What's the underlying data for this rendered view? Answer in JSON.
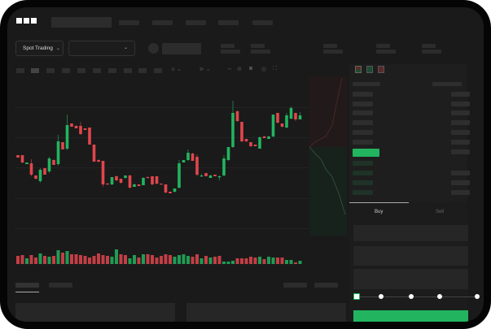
{
  "header": {
    "logo": "OKX"
  },
  "toolbar": {
    "market_type": "Spot Trading",
    "pair_select_value": ""
  },
  "trade_panel": {
    "tabs": [
      {
        "label": "Buy",
        "active": true
      },
      {
        "label": "Sell",
        "active": false
      }
    ],
    "leverage_steps": 5,
    "leverage_selected": 0
  },
  "colors": {
    "up": "#22b45f",
    "down": "#e0464d",
    "background": "#1a1a1a",
    "accent": "#22b45f"
  },
  "chart": {
    "type": "candlestick",
    "candles": [
      [
        118,
        115,
        118,
        115
      ],
      [
        118,
        109,
        118,
        108
      ],
      [
        107,
        109,
        109,
        107
      ],
      [
        108,
        94,
        113,
        92
      ],
      [
        93,
        89,
        93,
        88
      ],
      [
        86,
        100,
        102,
        84
      ],
      [
        102,
        94,
        102,
        94
      ],
      [
        98,
        114,
        116,
        96
      ],
      [
        112,
        106,
        113,
        106
      ],
      [
        107,
        135,
        143,
        105
      ],
      [
        134,
        125,
        134,
        125
      ],
      [
        126,
        155,
        168,
        124
      ],
      [
        157,
        153,
        157,
        153
      ],
      [
        154,
        151,
        155,
        151
      ],
      [
        154,
        144,
        159,
        143
      ],
      [
        151,
        149,
        151,
        149
      ],
      [
        152,
        131,
        152,
        131
      ],
      [
        131,
        110,
        131,
        110
      ],
      [
        112,
        110,
        113,
        109
      ],
      [
        111,
        82,
        111,
        79
      ],
      [
        83,
        82,
        84,
        82
      ],
      [
        82,
        91,
        91,
        81
      ],
      [
        92,
        87,
        93,
        86
      ],
      [
        89,
        84,
        89,
        83
      ],
      [
        90,
        93,
        93,
        89
      ],
      [
        93,
        78,
        94,
        77
      ],
      [
        79,
        82,
        83,
        79
      ],
      [
        82,
        80,
        82,
        80
      ],
      [
        81,
        90,
        91,
        81
      ],
      [
        91,
        90,
        92,
        90
      ],
      [
        92,
        82,
        92,
        81
      ],
      [
        92,
        83,
        92,
        82
      ],
      [
        83,
        82,
        83,
        82
      ],
      [
        82,
        72,
        82,
        71
      ],
      [
        73,
        71,
        73,
        71
      ],
      [
        73,
        77,
        77,
        72
      ],
      [
        78,
        108,
        112,
        77
      ],
      [
        109,
        112,
        112,
        109
      ],
      [
        112,
        121,
        125,
        111
      ],
      [
        120,
        111,
        121,
        111
      ],
      [
        116,
        94,
        119,
        92
      ],
      [
        92,
        93,
        95,
        91
      ],
      [
        96,
        92,
        96,
        92
      ],
      [
        90,
        93,
        94,
        90
      ],
      [
        94,
        92,
        94,
        92
      ],
      [
        92,
        92,
        93,
        87
      ],
      [
        93,
        114,
        118,
        92
      ],
      [
        112,
        128,
        128,
        111
      ],
      [
        128,
        170,
        185,
        127
      ],
      [
        172,
        160,
        173,
        159
      ],
      [
        159,
        135,
        159,
        134
      ],
      [
        138,
        135,
        138,
        134
      ],
      [
        134,
        129,
        134,
        128
      ],
      [
        131,
        129,
        131,
        129
      ],
      [
        126,
        140,
        141,
        126
      ],
      [
        141,
        139,
        142,
        139
      ],
      [
        138,
        141,
        142,
        138
      ],
      [
        141,
        168,
        168,
        140
      ],
      [
        170,
        158,
        170,
        157
      ],
      [
        157,
        153,
        157,
        152
      ],
      [
        152,
        167,
        170,
        151
      ],
      [
        163,
        176,
        178,
        162
      ],
      [
        170,
        162,
        170,
        160
      ],
      [
        162,
        167,
        171,
        162
      ]
    ],
    "volumes": [
      10,
      11,
      7,
      11,
      8,
      13,
      10,
      9,
      10,
      17,
      14,
      16,
      12,
      12,
      11,
      10,
      8,
      10,
      13,
      11,
      10,
      9,
      18,
      12,
      11,
      7,
      11,
      8,
      12,
      12,
      11,
      8,
      10,
      12,
      11,
      9,
      11,
      12,
      10,
      9,
      12,
      7,
      10,
      8,
      9,
      10,
      3,
      3,
      4,
      7,
      7,
      7,
      9,
      8,
      9,
      6,
      9,
      8,
      8,
      8,
      5,
      5,
      2,
      4
    ],
    "volume_dir": [
      "d",
      "d",
      "u",
      "d",
      "d",
      "u",
      "d",
      "u",
      "d",
      "u",
      "d",
      "u",
      "d",
      "d",
      "d",
      "d",
      "d",
      "d",
      "d",
      "d",
      "d",
      "u",
      "u",
      "d",
      "d",
      "u",
      "u",
      "d",
      "u",
      "d",
      "d",
      "d",
      "d",
      "d",
      "d",
      "u",
      "u",
      "u",
      "u",
      "d",
      "d",
      "u",
      "d",
      "u",
      "d",
      "d",
      "u",
      "u",
      "u",
      "d",
      "d",
      "d",
      "d",
      "d",
      "u",
      "d",
      "u",
      "u",
      "d",
      "d",
      "u",
      "u",
      "d",
      "u"
    ]
  }
}
